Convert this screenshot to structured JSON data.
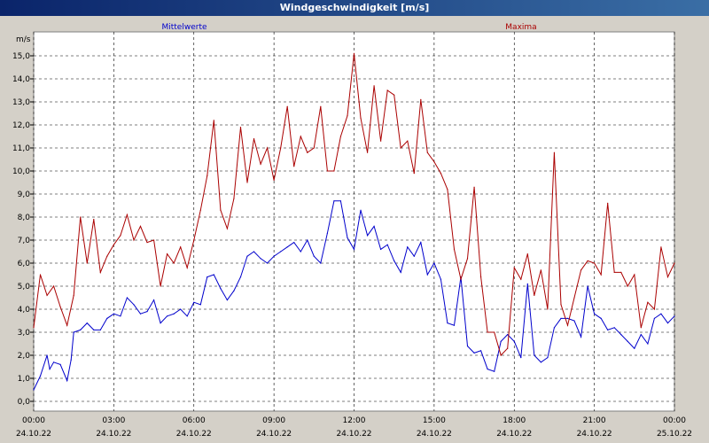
{
  "window": {
    "title": "Windgeschwindigkeit [m/s]"
  },
  "chart_data": {
    "type": "line",
    "title": "Windgeschwindigkeit [m/s]",
    "ylabel": "m/s",
    "xlabel": "",
    "ylim": [
      0,
      15.5
    ],
    "xlim": [
      0,
      24
    ],
    "grid": true,
    "legend": [
      "Mittelwerte",
      "Maxima"
    ],
    "legend_placement": "top",
    "yticks": [
      "0,0",
      "1,0",
      "2,0",
      "3,0",
      "4,0",
      "5,0",
      "6,0",
      "7,0",
      "8,0",
      "9,0",
      "10,0",
      "11,0",
      "12,0",
      "13,0",
      "14,0",
      "15,0"
    ],
    "xticks": [
      {
        "time": "00:00",
        "date": "24.10.22"
      },
      {
        "time": "03:00",
        "date": "24.10.22"
      },
      {
        "time": "06:00",
        "date": "24.10.22"
      },
      {
        "time": "09:00",
        "date": "24.10.22"
      },
      {
        "time": "12:00",
        "date": "24.10.22"
      },
      {
        "time": "15:00",
        "date": "24.10.22"
      },
      {
        "time": "18:00",
        "date": "24.10.22"
      },
      {
        "time": "21:00",
        "date": "24.10.22"
      },
      {
        "time": "00:00",
        "date": "25.10.22"
      }
    ],
    "series": [
      {
        "name": "Mittelwerte",
        "color": "#0000cc",
        "x": [
          0,
          0.25,
          0.5,
          0.6,
          0.75,
          1.0,
          1.25,
          1.4,
          1.5,
          1.75,
          2.0,
          2.25,
          2.5,
          2.75,
          3.0,
          3.25,
          3.5,
          3.75,
          4.0,
          4.25,
          4.5,
          4.75,
          5.0,
          5.25,
          5.5,
          5.75,
          6.0,
          6.25,
          6.5,
          6.75,
          7.0,
          7.25,
          7.5,
          7.75,
          8.0,
          8.25,
          8.5,
          8.75,
          9.0,
          9.25,
          9.5,
          9.75,
          10.0,
          10.25,
          10.5,
          10.75,
          11.0,
          11.25,
          11.5,
          11.75,
          12.0,
          12.25,
          12.5,
          12.75,
          13.0,
          13.25,
          13.5,
          13.75,
          14.0,
          14.25,
          14.5,
          14.75,
          15.0,
          15.25,
          15.5,
          15.75,
          16.0,
          16.25,
          16.5,
          16.75,
          17.0,
          17.25,
          17.5,
          17.75,
          18.0,
          18.25,
          18.5,
          18.75,
          19.0,
          19.25,
          19.5,
          19.75,
          20.0,
          20.25,
          20.5,
          20.75,
          21.0,
          21.25,
          21.5,
          21.75,
          22.0,
          22.25,
          22.5,
          22.75,
          23.0,
          23.25,
          23.5,
          23.75,
          24.0
        ],
        "values": [
          0.5,
          1.1,
          2.0,
          1.4,
          1.7,
          1.6,
          0.9,
          1.8,
          3.0,
          3.1,
          3.4,
          3.1,
          3.1,
          3.6,
          3.8,
          3.7,
          4.5,
          4.2,
          3.8,
          3.9,
          4.4,
          3.4,
          3.7,
          3.8,
          4.0,
          3.7,
          4.3,
          4.2,
          5.4,
          5.5,
          4.9,
          4.4,
          4.8,
          5.4,
          6.3,
          6.5,
          6.2,
          6.0,
          6.3,
          6.5,
          6.7,
          6.9,
          6.5,
          7.0,
          6.3,
          6.0,
          7.3,
          8.7,
          8.7,
          7.1,
          6.6,
          8.3,
          7.2,
          7.6,
          6.6,
          6.8,
          6.1,
          5.6,
          6.7,
          6.3,
          6.9,
          5.5,
          6.0,
          5.3,
          3.4,
          3.3,
          5.4,
          2.4,
          2.1,
          2.2,
          1.4,
          1.3,
          2.6,
          2.9,
          2.6,
          1.9,
          5.1,
          2.0,
          1.7,
          1.9,
          3.2,
          3.6,
          3.6,
          3.5,
          2.8,
          5.0,
          3.8,
          3.6,
          3.1,
          3.2,
          2.9,
          2.6,
          2.3,
          2.9,
          2.5,
          3.6,
          3.8,
          3.4,
          3.7
        ]
      },
      {
        "name": "Maxima",
        "color": "#aa0000",
        "x": [
          0,
          0.25,
          0.5,
          0.75,
          1.0,
          1.25,
          1.5,
          1.75,
          2.0,
          2.25,
          2.5,
          2.75,
          3.0,
          3.25,
          3.5,
          3.75,
          4.0,
          4.25,
          4.5,
          4.75,
          5.0,
          5.25,
          5.5,
          5.75,
          6.0,
          6.25,
          6.5,
          6.75,
          7.0,
          7.25,
          7.5,
          7.75,
          8.0,
          8.25,
          8.5,
          8.75,
          9.0,
          9.25,
          9.5,
          9.75,
          10.0,
          10.25,
          10.5,
          10.75,
          11.0,
          11.25,
          11.5,
          11.75,
          12.0,
          12.25,
          12.5,
          12.75,
          13.0,
          13.25,
          13.5,
          13.75,
          14.0,
          14.25,
          14.5,
          14.75,
          15.0,
          15.25,
          15.5,
          15.75,
          16.0,
          16.25,
          16.5,
          16.75,
          17.0,
          17.25,
          17.5,
          17.75,
          18.0,
          18.25,
          18.5,
          18.75,
          19.0,
          19.25,
          19.5,
          19.75,
          20.0,
          20.25,
          20.5,
          20.75,
          21.0,
          21.25,
          21.5,
          21.75,
          22.0,
          22.25,
          22.5,
          22.75,
          23.0,
          23.25,
          23.5,
          23.75,
          24.0
        ],
        "values": [
          3.2,
          5.5,
          4.6,
          5.0,
          4.1,
          3.3,
          4.6,
          8.0,
          6.0,
          7.9,
          5.6,
          6.3,
          6.8,
          7.2,
          8.1,
          7.0,
          7.6,
          6.9,
          7.0,
          5.0,
          6.4,
          6.0,
          6.7,
          5.8,
          7.0,
          8.3,
          9.8,
          12.2,
          8.3,
          7.5,
          8.8,
          11.9,
          9.5,
          11.4,
          10.3,
          11.0,
          9.6,
          11.0,
          12.8,
          10.2,
          11.5,
          10.8,
          11.0,
          12.8,
          10.0,
          10.0,
          11.5,
          12.4,
          15.1,
          12.3,
          10.8,
          13.7,
          11.3,
          13.5,
          13.3,
          11.0,
          11.3,
          9.9,
          13.1,
          10.8,
          10.4,
          9.9,
          9.2,
          6.6,
          5.3,
          6.2,
          9.3,
          5.4,
          3.0,
          3.0,
          2.0,
          2.3,
          5.8,
          5.3,
          6.4,
          4.6,
          5.7,
          4.0,
          10.8,
          4.2,
          3.3,
          4.5,
          5.7,
          6.1,
          6.0,
          5.5,
          8.6,
          5.6,
          5.6,
          5.0,
          5.5,
          3.2,
          4.3,
          4.0,
          6.7,
          5.4,
          6.0
        ]
      }
    ]
  }
}
